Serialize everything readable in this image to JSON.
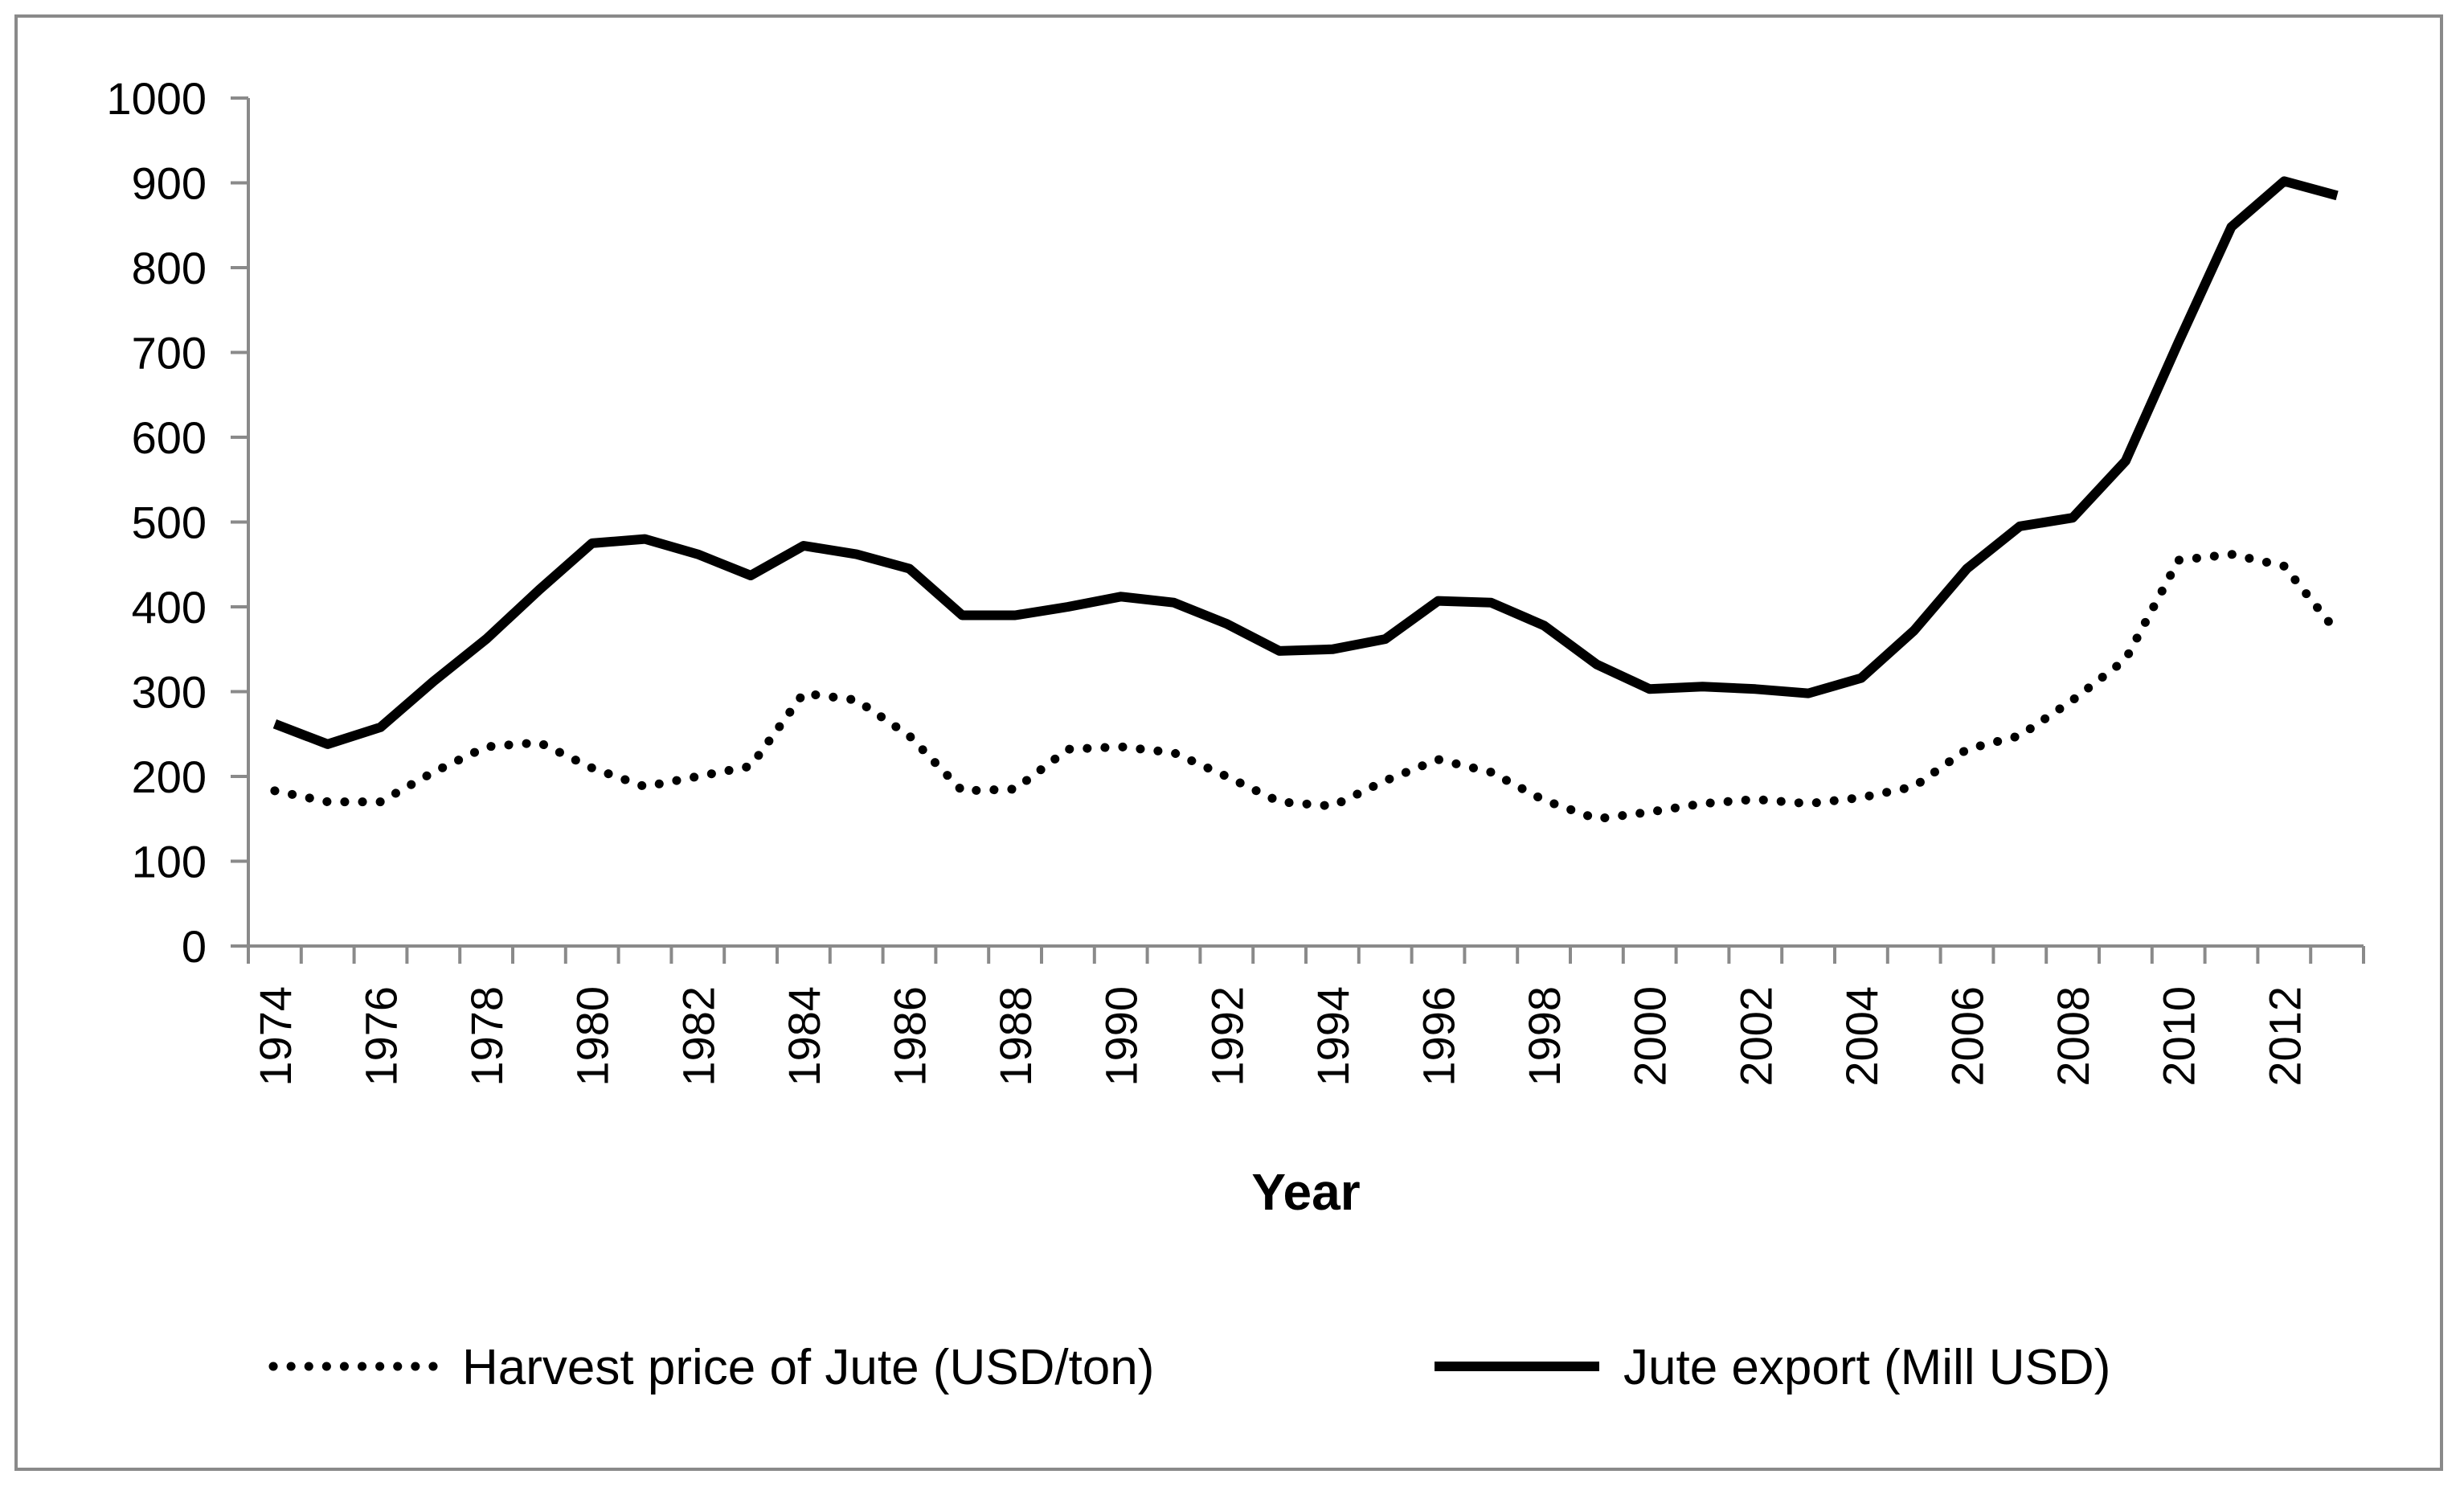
{
  "chart_data": {
    "type": "line",
    "title": "",
    "xlabel": "Year",
    "ylabel": "",
    "ylim": [
      0,
      1000
    ],
    "yticks": [
      0,
      100,
      200,
      300,
      400,
      500,
      600,
      700,
      800,
      900,
      1000
    ],
    "x": [
      1974,
      1975,
      1976,
      1977,
      1978,
      1979,
      1980,
      1981,
      1982,
      1983,
      1984,
      1985,
      1986,
      1987,
      1988,
      1989,
      1990,
      1991,
      1992,
      1993,
      1994,
      1995,
      1996,
      1997,
      1998,
      1999,
      2000,
      2001,
      2002,
      2003,
      2004,
      2005,
      2006,
      2007,
      2008,
      2009,
      2010,
      2011,
      2012,
      2013
    ],
    "xtick_labels": [
      "1974",
      "1976",
      "1978",
      "1980",
      "1982",
      "1984",
      "1986",
      "1988",
      "1990",
      "1992",
      "1994",
      "1996",
      "1998",
      "2000",
      "2002",
      "2004",
      "2006",
      "2008",
      "2010",
      "2012"
    ],
    "grid": false,
    "legend_position": "bottom",
    "series": [
      {
        "name": "Harvest price of Jute (USD/ton)",
        "style": "dotted",
        "color": "#000000",
        "values": [
          183,
          170,
          170,
          205,
          235,
          240,
          210,
          188,
          200,
          212,
          298,
          290,
          248,
          183,
          185,
          232,
          235,
          228,
          200,
          170,
          165,
          195,
          220,
          205,
          172,
          150,
          158,
          168,
          173,
          168,
          175,
          188,
          232,
          248,
          290,
          338,
          455,
          462,
          448,
          370
        ]
      },
      {
        "name": "Jute export (Mill USD)",
        "style": "solid",
        "color": "#000000",
        "values": [
          262,
          238,
          258,
          312,
          362,
          420,
          475,
          480,
          462,
          437,
          472,
          462,
          445,
          390,
          390,
          400,
          412,
          405,
          380,
          348,
          350,
          362,
          407,
          405,
          378,
          332,
          303,
          306,
          303,
          298,
          316,
          372,
          445,
          495,
          505,
          572,
          712,
          848,
          902,
          885
        ]
      }
    ]
  }
}
